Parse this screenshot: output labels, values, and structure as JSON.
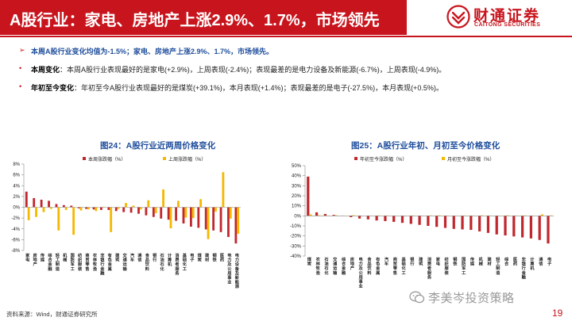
{
  "header": {
    "title": "A股行业：家电、房地产上涨2.9%、1.7%，市场领先",
    "logo_cn": "财通证券",
    "logo_en": "CAITONG SECURITIES"
  },
  "bullets": {
    "lead": {
      "marker": "➢",
      "text": "本周A股行业变化均值为-1.5%；家电、房地产上涨2.9%、1.7%，市场领先。"
    },
    "items": [
      {
        "marker": "•",
        "key": "本周变化",
        "text": "：本周A股行业表现最好的是家电(+2.9%)，上周表现(-2.4%)；表现最差的是电力设备及新能源(-6.7%)，上周表现(-4.9%)。"
      },
      {
        "marker": "•",
        "key": "年初至今变化",
        "text": "：年初至今A股行业表现最好的是煤炭(+39.1%)，本月表现(+1.4%)；表现最差的是电子(-27.5%)，本月表现(+0.5%)。"
      }
    ]
  },
  "footer": {
    "source": "资料来源：Wind，财通证券研究所",
    "watermark": "李美岑投资策略",
    "page": "19"
  },
  "colors": {
    "brand_red": "#c8151d",
    "title_blue": "#1f4e9c",
    "series_red": "#c0282e",
    "series_yellow": "#f5b800"
  },
  "chart_data": [
    {
      "type": "bar",
      "title": "图24：A股行业近两周价格变化",
      "categories": [
        "家电",
        "房地产",
        "传媒",
        "综合金融",
        "轻工制造",
        "机械",
        "国防军工",
        "纺织服装",
        "商贸零售",
        "农林牧渔",
        "非银行金融",
        "有色金属",
        "建筑",
        "交通运输",
        "汽车",
        "通信",
        "食品饮料",
        "银行",
        "石油石化",
        "计算机",
        "消费者服务",
        "基础化工",
        "电子",
        "煤炭",
        "建材",
        "钢铁",
        "医药",
        "电力及公用事业",
        "电力设备及新能源"
      ],
      "series": [
        {
          "name": "本周涨跌幅（%）",
          "color": "#c0282e",
          "values": [
            2.9,
            1.7,
            1.4,
            1.2,
            0.6,
            0.4,
            0.3,
            -0.2,
            -0.3,
            -0.4,
            -0.5,
            -0.5,
            -0.7,
            -0.9,
            -1.0,
            -1.2,
            -1.5,
            -1.8,
            -2.1,
            -2.3,
            -2.5,
            -3.0,
            -3.6,
            -3.8,
            -4.1,
            -4.3,
            -4.6,
            -5.5,
            -6.7
          ]
        },
        {
          "name": "上周涨跌幅（%）",
          "color": "#f5b800",
          "values": [
            -2.4,
            -1.8,
            -0.9,
            -0.3,
            -4.3,
            -0.5,
            -5.1,
            -0.6,
            -0.4,
            -0.7,
            0.1,
            -4.6,
            -0.3,
            0.8,
            0.3,
            -0.4,
            1.3,
            -1.1,
            3.3,
            -3.9,
            1.2,
            -1.9,
            -2.0,
            1.5,
            -5.9,
            -0.8,
            6.5,
            -2.1,
            -4.9
          ]
        }
      ],
      "ylim": [
        -8,
        8
      ],
      "yticks": [
        "8%",
        "6%",
        "4%",
        "2%",
        "0%",
        "-2%",
        "-4%",
        "-6%",
        "-8%"
      ],
      "legend": "top"
    },
    {
      "type": "bar",
      "title": "图25：A股行业年初、月初至今价格变化",
      "categories": [
        "煤炭",
        "农林牧渔",
        "石油石化",
        "交通运输",
        "综合金融",
        "房地产",
        "电力及公用事业",
        "食品饮料",
        "有色金属",
        "汽车",
        "商贸零售",
        "基础化工",
        "银行",
        "建筑",
        "消费者服务",
        "家电",
        "纺织服装",
        "钢铁",
        "国防军工",
        "传媒",
        "机械",
        "建材",
        "轻工制造",
        "综合",
        "医药",
        "非银行金融",
        "计算机",
        "通信",
        "电子"
      ],
      "series": [
        {
          "name": "年初至今涨跌幅（%）",
          "color": "#c0282e",
          "values": [
            39.1,
            3.5,
            1.9,
            1.0,
            0.3,
            -1.3,
            -2.7,
            -3.5,
            -4.6,
            -5.2,
            -6.0,
            -7.0,
            -8.0,
            -9.0,
            -10.0,
            -11.0,
            -12.0,
            -13.0,
            -13.5,
            -14.0,
            -15.5,
            -17.0,
            -18.5,
            -19.5,
            -20.5,
            -21.5,
            -22.5,
            -24.0,
            -27.5
          ]
        },
        {
          "name": "月初至今涨跌幅（%）",
          "color": "#f5b800",
          "values": [
            1.4,
            0.6,
            0.4,
            0.6,
            0.3,
            0.7,
            0.3,
            0.3,
            0.5,
            0.4,
            0.3,
            0.2,
            0.4,
            0.3,
            0.5,
            0.6,
            0.2,
            0.3,
            0.4,
            0.3,
            0.5,
            0.4,
            0.3,
            0.6,
            0.4,
            0.5,
            0.3,
            1.5,
            0.5
          ]
        }
      ],
      "ylim": [
        -40,
        50
      ],
      "yticks": [
        "50%",
        "40%",
        "30%",
        "20%",
        "10%",
        "0%",
        "-10%",
        "-20%",
        "-30%",
        "-40%"
      ],
      "legend": "top"
    }
  ]
}
